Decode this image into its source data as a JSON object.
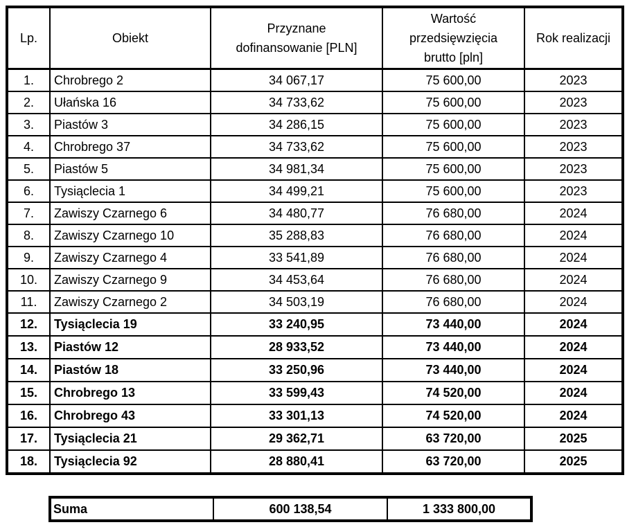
{
  "colors": {
    "text": "#000000",
    "border": "#000000",
    "background": "#ffffff"
  },
  "table": {
    "headers": {
      "lp": "Lp.",
      "obiekt": "Obiekt",
      "dofinansowanie": "Przyznane\ndofinansowanie [PLN]",
      "wartosc": "Wartość\nprzedsięwzięcia\nbrutto [pln]",
      "rok": "Rok realizacji"
    },
    "rows": [
      {
        "lp": "1.",
        "obiekt": "Chrobrego 2",
        "dofinansowanie": "34 067,17",
        "wartosc": "75 600,00",
        "rok": "2023",
        "bold": false
      },
      {
        "lp": "2.",
        "obiekt": "Ułańska 16",
        "dofinansowanie": "34 733,62",
        "wartosc": "75 600,00",
        "rok": "2023",
        "bold": false
      },
      {
        "lp": "3.",
        "obiekt": "Piastów 3",
        "dofinansowanie": "34 286,15",
        "wartosc": "75 600,00",
        "rok": "2023",
        "bold": false
      },
      {
        "lp": "4.",
        "obiekt": "Chrobrego 37",
        "dofinansowanie": "34 733,62",
        "wartosc": "75 600,00",
        "rok": "2023",
        "bold": false
      },
      {
        "lp": "5.",
        "obiekt": "Piastów 5",
        "dofinansowanie": "34 981,34",
        "wartosc": "75 600,00",
        "rok": "2023",
        "bold": false
      },
      {
        "lp": "6.",
        "obiekt": "Tysiąclecia 1",
        "dofinansowanie": "34 499,21",
        "wartosc": "75 600,00",
        "rok": "2023",
        "bold": false
      },
      {
        "lp": "7.",
        "obiekt": "Zawiszy Czarnego 6",
        "dofinansowanie": "34 480,77",
        "wartosc": "76 680,00",
        "rok": "2024",
        "bold": false
      },
      {
        "lp": "8.",
        "obiekt": "Zawiszy Czarnego 10",
        "dofinansowanie": "35 288,83",
        "wartosc": "76 680,00",
        "rok": "2024",
        "bold": false
      },
      {
        "lp": "9.",
        "obiekt": "Zawiszy Czarnego 4",
        "dofinansowanie": "33 541,89",
        "wartosc": "76 680,00",
        "rok": "2024",
        "bold": false
      },
      {
        "lp": "10.",
        "obiekt": "Zawiszy Czarnego 9",
        "dofinansowanie": "34 453,64",
        "wartosc": "76 680,00",
        "rok": "2024",
        "bold": false
      },
      {
        "lp": "11.",
        "obiekt": "Zawiszy Czarnego 2",
        "dofinansowanie": "34 503,19",
        "wartosc": "76 680,00",
        "rok": "2024",
        "bold": false
      },
      {
        "lp": "12.",
        "obiekt": "Tysiąclecia 19",
        "dofinansowanie": "33 240,95",
        "wartosc": "73 440,00",
        "rok": "2024",
        "bold": true
      },
      {
        "lp": "13.",
        "obiekt": "Piastów 12",
        "dofinansowanie": "28 933,52",
        "wartosc": "73 440,00",
        "rok": "2024",
        "bold": true
      },
      {
        "lp": "14.",
        "obiekt": "Piastów 18",
        "dofinansowanie": "33 250,96",
        "wartosc": "73 440,00",
        "rok": "2024",
        "bold": true
      },
      {
        "lp": "15.",
        "obiekt": "Chrobrego 13",
        "dofinansowanie": "33 599,43",
        "wartosc": "74 520,00",
        "rok": "2024",
        "bold": true
      },
      {
        "lp": "16.",
        "obiekt": "Chrobrego 43",
        "dofinansowanie": "33 301,13",
        "wartosc": "74 520,00",
        "rok": "2024",
        "bold": true
      },
      {
        "lp": "17.",
        "obiekt": "Tysiąclecia 21",
        "dofinansowanie": "29 362,71",
        "wartosc": "63 720,00",
        "rok": "2025",
        "bold": true
      },
      {
        "lp": "18.",
        "obiekt": "Tysiąclecia 92",
        "dofinansowanie": "28 880,41",
        "wartosc": "63 720,00",
        "rok": "2025",
        "bold": true
      }
    ]
  },
  "summary": {
    "label": "Suma",
    "dofinansowanie": "600 138,54",
    "wartosc": "1 333 800,00"
  }
}
